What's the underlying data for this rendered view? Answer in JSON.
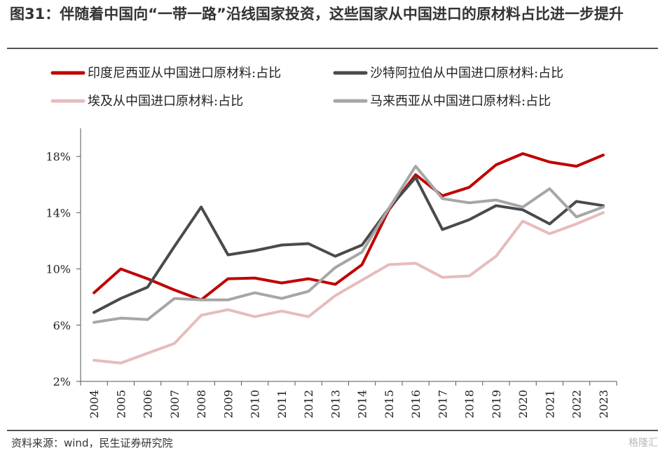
{
  "title": "图31：伴随着中国向“一带一路”沿线国家投资，这些国家从中国进口的原材料占比进一步提升",
  "source": "资料来源：wind，民生证券研究院",
  "watermark": "格隆汇",
  "chart_data": {
    "type": "line",
    "x": [
      "2004",
      "2005",
      "2006",
      "2007",
      "2008",
      "2009",
      "2010",
      "2011",
      "2012",
      "2013",
      "2014",
      "2015",
      "2016",
      "2017",
      "2018",
      "2019",
      "2020",
      "2021",
      "2022",
      "2023"
    ],
    "ylim": [
      2,
      20
    ],
    "yticks": [
      2,
      6,
      10,
      14,
      18
    ],
    "ytick_labels": [
      "2%",
      "6%",
      "10%",
      "14%",
      "18%"
    ],
    "legend_position": "top",
    "series": [
      {
        "name": "印度尼西亚从中国进口原材料:占比",
        "color": "#c00000",
        "values": [
          8.3,
          10.0,
          9.3,
          8.5,
          7.8,
          9.3,
          9.35,
          9.0,
          9.3,
          8.9,
          10.3,
          14.2,
          16.7,
          15.2,
          15.8,
          17.4,
          18.2,
          17.6,
          17.3,
          18.1
        ]
      },
      {
        "name": "沙特阿拉伯从中国进口原材料:占比",
        "color": "#4a4a4a",
        "values": [
          6.9,
          7.9,
          8.7,
          11.6,
          14.4,
          11.0,
          11.3,
          11.7,
          11.8,
          10.9,
          11.7,
          14.3,
          16.5,
          12.8,
          13.5,
          14.5,
          14.2,
          13.2,
          14.8,
          14.5
        ]
      },
      {
        "name": "埃及从中国进口原材料:占比",
        "color": "#e7bcbc",
        "values": [
          3.5,
          3.3,
          4.0,
          4.7,
          6.7,
          7.1,
          6.6,
          7.0,
          6.6,
          8.1,
          9.2,
          10.3,
          10.4,
          9.4,
          9.5,
          10.9,
          13.4,
          12.5,
          13.2,
          14.0
        ]
      },
      {
        "name": "马来西亚从中国进口原材料:占比",
        "color": "#a6a6a6",
        "values": [
          6.2,
          6.5,
          6.4,
          7.9,
          7.8,
          7.8,
          8.3,
          7.9,
          8.4,
          10.1,
          11.2,
          14.3,
          17.3,
          15.0,
          14.7,
          14.9,
          14.4,
          15.7,
          13.7,
          14.4
        ]
      }
    ]
  }
}
